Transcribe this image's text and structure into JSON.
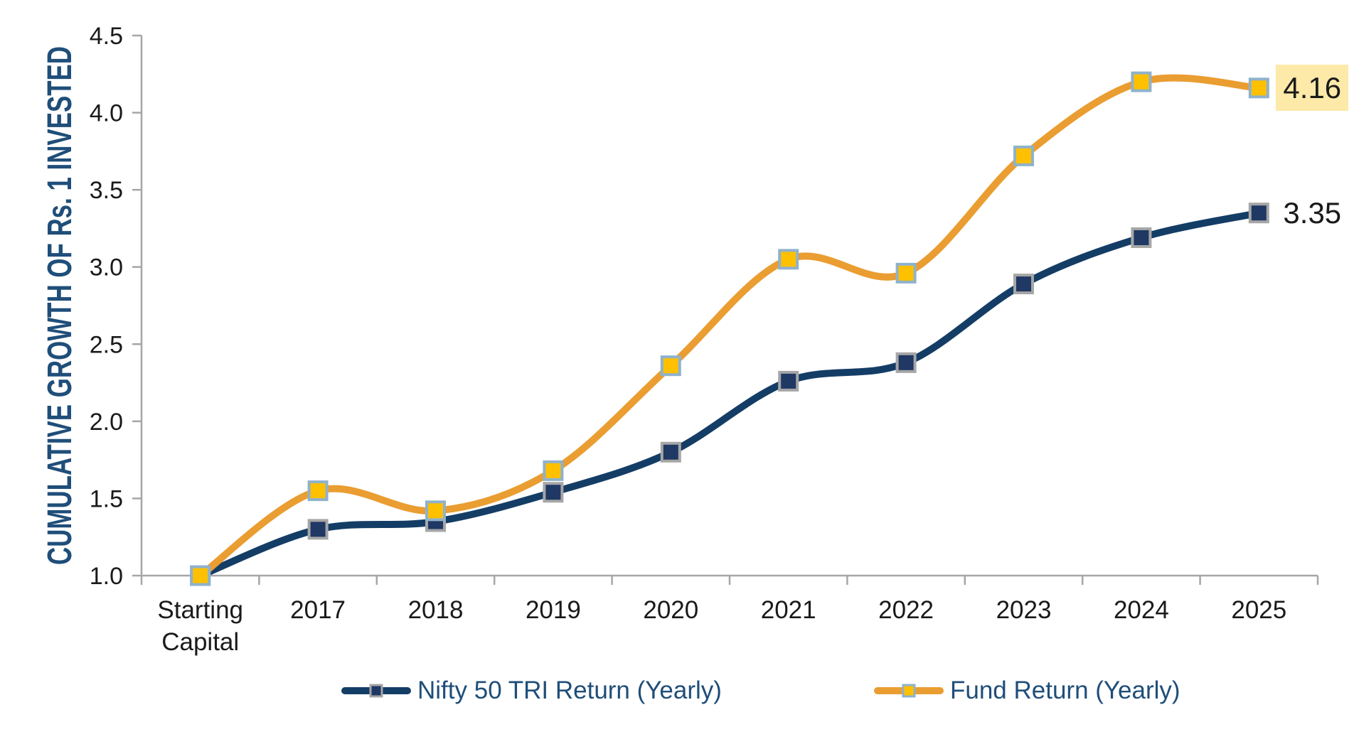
{
  "chart_data": {
    "type": "line",
    "title": "",
    "y_axis_title": "CUMULATIVE GROWTH OF Rs. 1 INVESTED",
    "categories": [
      "Starting Capital",
      "2017",
      "2018",
      "2019",
      "2020",
      "2021",
      "2022",
      "2023",
      "2024",
      "2025"
    ],
    "categories_display": [
      [
        "Starting",
        "Capital"
      ],
      [
        "2017"
      ],
      [
        "2018"
      ],
      [
        "2019"
      ],
      [
        "2020"
      ],
      [
        "2021"
      ],
      [
        "2022"
      ],
      [
        "2023"
      ],
      [
        "2024"
      ],
      [
        "2025"
      ]
    ],
    "yaxis": {
      "min": 1.0,
      "max": 4.5,
      "step": 0.5,
      "tick_labels": [
        "1.0",
        "1.5",
        "2.0",
        "2.5",
        "3.0",
        "3.5",
        "4.0",
        "4.5"
      ]
    },
    "ylim": [
      1.0,
      4.5
    ],
    "grid": false,
    "smooth": true,
    "legend_position": "bottom",
    "series": [
      {
        "name": "Nifty 50 TRI Return (Yearly)",
        "color": "#143D66",
        "marker_fill": "#1F3864",
        "marker_border": "#A6A6A6",
        "values": [
          1.0,
          1.3,
          1.35,
          1.54,
          1.8,
          2.26,
          2.38,
          2.89,
          3.19,
          3.35
        ],
        "end_label": {
          "text": "3.35",
          "highlighted": false
        }
      },
      {
        "name": "Fund Return (Yearly)",
        "color": "#EA9D31",
        "marker_fill": "#FFC000",
        "marker_border": "#8FB2CC",
        "values": [
          1.0,
          1.55,
          1.42,
          1.68,
          2.36,
          3.05,
          2.96,
          3.72,
          4.2,
          4.16
        ],
        "end_label": {
          "text": "4.16",
          "highlighted": true,
          "highlight_color": "#FDE9A8"
        }
      }
    ],
    "colors": {
      "axis": "#A6A6A6",
      "tick_text": "#1A1A1A",
      "accent_text": "#1F4E79"
    }
  }
}
